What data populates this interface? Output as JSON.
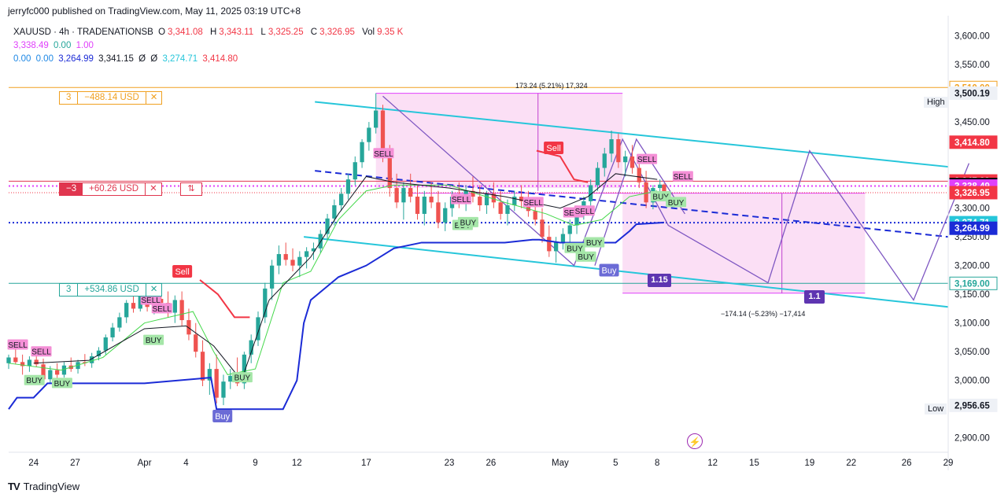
{
  "publisher": "jerryfc000 published on TradingView.com, May 11, 2025 03:19 UTC+8",
  "legend": {
    "symbol": "XAUUSD · 4h · TRADENATIONSB",
    "o_label": "O",
    "o": "3,341.08",
    "h_label": "H",
    "h": "3,343.11",
    "l_label": "L",
    "l": "3,325.25",
    "c_label": "C",
    "c": "3,326.95",
    "vol_label": "Vol",
    "vol": "9.35 K",
    "line2": [
      "3,338.49",
      "0.00",
      "1.00"
    ],
    "line3": [
      "0.00",
      "0.00",
      "3,264.99",
      "3,341.15",
      "Ø",
      "Ø",
      "3,274.71",
      "3,414.80"
    ]
  },
  "positions": [
    {
      "qty": "3",
      "pnl": "−488.14 USD",
      "close": "✕",
      "color": "#f0a020"
    },
    {
      "qty": "−3",
      "pnl": "+60.26 USD",
      "close": "✕",
      "flip": "⇅",
      "color": "#e0364f"
    },
    {
      "qty": "3",
      "pnl": "+534.86 USD",
      "close": "✕",
      "color": "#26a69a"
    }
  ],
  "measure_top": "173.24 (5.21%) 17,324",
  "measure_bottom": "−174.14 (−5.23%) −17,414",
  "signal_labels": {
    "sell": "SELL",
    "buy": "BUY",
    "sell_big": "Sell",
    "buy_big": "Buy"
  },
  "wave_labels": [
    "1.15",
    "1.1"
  ],
  "high_tag": "High",
  "low_tag": "Low",
  "footer_brand": "TradingView",
  "footer_logo": "TV",
  "chart_data": {
    "type": "candlestick",
    "symbol": "XAUUSD",
    "interval": "4h",
    "y_ticks": [
      2900,
      2950,
      3000,
      3050,
      3100,
      3150,
      3200,
      3250,
      3300,
      3350,
      3400,
      3450,
      3500,
      3550,
      3600
    ],
    "y_tick_labels": [
      "2,900.00",
      "",
      "3,000.00",
      "3,050.00",
      "3,100.00",
      "3,150.00",
      "3,200.00",
      "3,250.00",
      "3,300.00",
      "",
      "",
      "3,450.00",
      "",
      "3,550.00",
      "3,600.00"
    ],
    "ylim": [
      2875,
      3635
    ],
    "x_ticks": [
      {
        "label": "24",
        "day": 0
      },
      {
        "label": "27",
        "day": 3
      },
      {
        "label": "Apr",
        "day": 8
      },
      {
        "label": "4",
        "day": 11
      },
      {
        "label": "9",
        "day": 16
      },
      {
        "label": "12",
        "day": 19
      },
      {
        "label": "17",
        "day": 24
      },
      {
        "label": "23",
        "day": 30
      },
      {
        "label": "26",
        "day": 33
      },
      {
        "label": "May",
        "day": 38
      },
      {
        "label": "5",
        "day": 42
      },
      {
        "label": "8",
        "day": 45
      },
      {
        "label": "12",
        "day": 49
      },
      {
        "label": "15",
        "day": 52
      },
      {
        "label": "19",
        "day": 56
      },
      {
        "label": "22",
        "day": 59
      },
      {
        "label": "26",
        "day": 63
      },
      {
        "label": "29",
        "day": 66
      }
    ],
    "xlim": [
      -1.8,
      66
    ],
    "price_tags": [
      {
        "value": 3510.0,
        "label": "3,510.00",
        "bg": "#ffffff",
        "fg": "#f0a020",
        "border": "#f0a020"
      },
      {
        "value": 3500.19,
        "label": "3,500.19",
        "bg": "#eef1f6",
        "fg": "#131722",
        "border": "#eef1f6"
      },
      {
        "value": 3414.8,
        "label": "3,414.80",
        "bg": "#f23645",
        "fg": "#ffffff",
        "border": "#f23645"
      },
      {
        "value": 3347.29,
        "label": "3,347.29",
        "bg": "#f23645",
        "fg": "#ffffff",
        "border": "#f23645"
      },
      {
        "value": 3341.15,
        "label": "3,341.15",
        "bg": "#000000",
        "fg": "#ffffff",
        "border": "#000000"
      },
      {
        "value": 3338.49,
        "label": "3,338.49",
        "bg": "#e040fb",
        "fg": "#ffffff",
        "border": "#e040fb"
      },
      {
        "value": 3326.95,
        "label": "3,326.95",
        "bg": "#f23645",
        "fg": "#ffffff",
        "border": "#f23645"
      },
      {
        "value": 3274.71,
        "label": "3,274.71",
        "bg": "#26c6da",
        "fg": "#ffffff",
        "border": "#26c6da"
      },
      {
        "value": 3264.99,
        "label": "3,264.99",
        "bg": "#1b2bd6",
        "fg": "#ffffff",
        "border": "#1b2bd6"
      },
      {
        "value": 3169.0,
        "label": "3,169.00",
        "bg": "#ffffff",
        "fg": "#26a69a",
        "border": "#26a69a"
      },
      {
        "value": 2956.65,
        "label": "2,956.65",
        "bg": "#eef1f6",
        "fg": "#131722",
        "border": "#eef1f6"
      }
    ],
    "high": 3500.19,
    "low": 2956.65,
    "series": [
      {
        "name": "ohlc",
        "points": [
          [
            -1.8,
            3030,
            3045,
            3020,
            3040
          ],
          [
            -1.3,
            3040,
            3058,
            3028,
            3032
          ],
          [
            -0.8,
            3032,
            3045,
            3010,
            3025
          ],
          [
            -0.3,
            3025,
            3042,
            3015,
            3036
          ],
          [
            0.2,
            3036,
            3050,
            3024,
            3028
          ],
          [
            0.7,
            3028,
            3038,
            2995,
            3002
          ],
          [
            1.2,
            3002,
            3025,
            2995,
            3018
          ],
          [
            1.7,
            3018,
            3030,
            3000,
            3010
          ],
          [
            2.2,
            3010,
            3032,
            3005,
            3026
          ],
          [
            2.7,
            3026,
            3040,
            3015,
            3020
          ],
          [
            3.2,
            3020,
            3036,
            3012,
            3032
          ],
          [
            3.7,
            3032,
            3046,
            3025,
            3030
          ],
          [
            4.2,
            3030,
            3048,
            3022,
            3042
          ],
          [
            4.7,
            3042,
            3058,
            3035,
            3052
          ],
          [
            5.2,
            3052,
            3080,
            3045,
            3075
          ],
          [
            5.7,
            3075,
            3100,
            3068,
            3092
          ],
          [
            6.2,
            3092,
            3118,
            3085,
            3110
          ],
          [
            6.7,
            3110,
            3140,
            3100,
            3135
          ],
          [
            7.2,
            3135,
            3150,
            3118,
            3125
          ],
          [
            7.7,
            3125,
            3155,
            3120,
            3148
          ],
          [
            8.2,
            3148,
            3160,
            3120,
            3128
          ],
          [
            8.7,
            3128,
            3150,
            3115,
            3142
          ],
          [
            9.2,
            3142,
            3162,
            3130,
            3135
          ],
          [
            9.7,
            3135,
            3155,
            3110,
            3118
          ],
          [
            10.2,
            3118,
            3148,
            3100,
            3140
          ],
          [
            10.7,
            3140,
            3155,
            3095,
            3105
          ],
          [
            11.2,
            3105,
            3125,
            3070,
            3080
          ],
          [
            11.7,
            3080,
            3100,
            3040,
            3050
          ],
          [
            12.2,
            3050,
            3070,
            2990,
            3000
          ],
          [
            12.7,
            3000,
            3030,
            2975,
            3020
          ],
          [
            13.2,
            3020,
            3045,
            2960,
            2970
          ],
          [
            13.7,
            2970,
            3010,
            2957,
            2998
          ],
          [
            14.2,
            2998,
            3020,
            2985,
            3008
          ],
          [
            14.7,
            3008,
            3040,
            2990,
            2995
          ],
          [
            15.2,
            2995,
            3050,
            2985,
            3045
          ],
          [
            15.7,
            3045,
            3080,
            3030,
            3070
          ],
          [
            16.2,
            3070,
            3120,
            3060,
            3110
          ],
          [
            16.7,
            3110,
            3170,
            3100,
            3160
          ],
          [
            17.2,
            3160,
            3210,
            3140,
            3200
          ],
          [
            17.7,
            3200,
            3235,
            3185,
            3220
          ],
          [
            18.2,
            3220,
            3240,
            3200,
            3210
          ],
          [
            18.7,
            3210,
            3230,
            3190,
            3200
          ],
          [
            19.2,
            3200,
            3225,
            3180,
            3215
          ],
          [
            19.7,
            3215,
            3232,
            3195,
            3225
          ],
          [
            20.2,
            3225,
            3240,
            3210,
            3230
          ],
          [
            20.7,
            3230,
            3262,
            3222,
            3255
          ],
          [
            21.2,
            3255,
            3290,
            3245,
            3282
          ],
          [
            21.7,
            3282,
            3315,
            3270,
            3305
          ],
          [
            22.2,
            3305,
            3335,
            3295,
            3325
          ],
          [
            22.7,
            3325,
            3360,
            3315,
            3350
          ],
          [
            23.2,
            3350,
            3390,
            3340,
            3380
          ],
          [
            23.7,
            3380,
            3420,
            3370,
            3415
          ],
          [
            24.2,
            3415,
            3450,
            3400,
            3440
          ],
          [
            24.7,
            3440,
            3500,
            3430,
            3470
          ],
          [
            25.2,
            3470,
            3480,
            3380,
            3395
          ],
          [
            25.7,
            3395,
            3410,
            3320,
            3335
          ],
          [
            26.2,
            3335,
            3360,
            3300,
            3310
          ],
          [
            26.7,
            3310,
            3345,
            3280,
            3335
          ],
          [
            27.2,
            3335,
            3360,
            3310,
            3320
          ],
          [
            27.7,
            3320,
            3340,
            3280,
            3290
          ],
          [
            28.2,
            3290,
            3330,
            3270,
            3320
          ],
          [
            28.7,
            3320,
            3345,
            3300,
            3310
          ],
          [
            29.2,
            3310,
            3330,
            3265,
            3275
          ],
          [
            29.7,
            3275,
            3310,
            3260,
            3300
          ],
          [
            30.2,
            3300,
            3330,
            3285,
            3320
          ],
          [
            30.7,
            3320,
            3345,
            3300,
            3310
          ],
          [
            31.2,
            3310,
            3340,
            3295,
            3330
          ],
          [
            31.7,
            3330,
            3355,
            3310,
            3320
          ],
          [
            32.2,
            3320,
            3340,
            3295,
            3305
          ],
          [
            32.7,
            3305,
            3330,
            3290,
            3325
          ],
          [
            33.2,
            3325,
            3345,
            3300,
            3310
          ],
          [
            33.7,
            3310,
            3330,
            3280,
            3290
          ],
          [
            34.2,
            3290,
            3315,
            3270,
            3305
          ],
          [
            34.7,
            3305,
            3330,
            3295,
            3320
          ],
          [
            35.2,
            3320,
            3340,
            3300,
            3312
          ],
          [
            35.7,
            3312,
            3330,
            3285,
            3295
          ],
          [
            36.2,
            3295,
            3315,
            3270,
            3280
          ],
          [
            36.7,
            3280,
            3300,
            3240,
            3250
          ],
          [
            37.2,
            3250,
            3270,
            3215,
            3225
          ],
          [
            37.7,
            3225,
            3250,
            3205,
            3240
          ],
          [
            38.2,
            3240,
            3265,
            3228,
            3255
          ],
          [
            38.7,
            3255,
            3280,
            3240,
            3270
          ],
          [
            39.2,
            3270,
            3300,
            3255,
            3290
          ],
          [
            39.7,
            3290,
            3320,
            3280,
            3312
          ],
          [
            40.2,
            3312,
            3350,
            3300,
            3340
          ],
          [
            40.7,
            3340,
            3380,
            3330,
            3370
          ],
          [
            41.2,
            3370,
            3405,
            3355,
            3395
          ],
          [
            41.7,
            3395,
            3435,
            3380,
            3420
          ],
          [
            42.2,
            3420,
            3430,
            3370,
            3380
          ],
          [
            42.7,
            3380,
            3400,
            3355,
            3390
          ],
          [
            43.2,
            3390,
            3410,
            3360,
            3370
          ],
          [
            43.7,
            3370,
            3390,
            3335,
            3345
          ],
          [
            44.2,
            3345,
            3365,
            3300,
            3310
          ],
          [
            44.7,
            3310,
            3340,
            3298,
            3335
          ],
          [
            45.2,
            3335,
            3350,
            3320,
            3341
          ],
          [
            45.5,
            3341,
            3343,
            3325,
            3327
          ]
        ]
      }
    ]
  }
}
